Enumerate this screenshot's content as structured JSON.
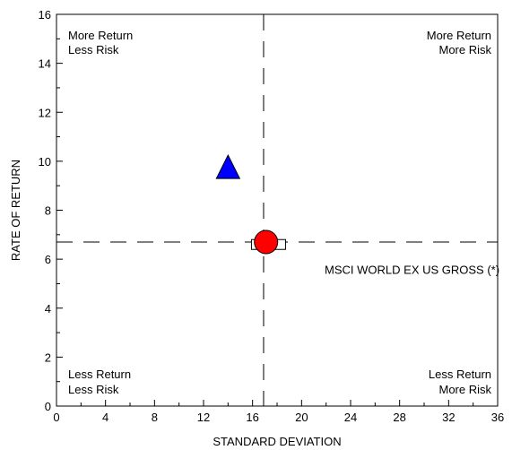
{
  "chart_data": {
    "type": "scatter",
    "xlabel": "STANDARD DEVIATION",
    "ylabel": "RATE OF RETURN",
    "xlim": [
      0,
      36
    ],
    "ylim": [
      0,
      16
    ],
    "x_ticks": [
      "0",
      "4",
      "8",
      "12",
      "16",
      "20",
      "24",
      "28",
      "32",
      "36"
    ],
    "y_ticks": [
      "0",
      "2",
      "4",
      "6",
      "8",
      "10",
      "12",
      "14",
      "16"
    ],
    "grid": false,
    "reference_lines": {
      "x": 16.9,
      "y": 6.7
    },
    "quadrant_labels": {
      "top_left": [
        "More Return",
        "Less Risk"
      ],
      "top_right": [
        "More Return",
        "More Risk"
      ],
      "bottom_left": [
        "Less Return",
        "Less Risk"
      ],
      "bottom_right": [
        "Less Return",
        "More Risk"
      ]
    },
    "points": [
      {
        "marker": "triangle",
        "color": "#0000ff",
        "x": 14.0,
        "y": 9.7
      },
      {
        "marker": "circle",
        "color": "#ff0000",
        "x": 17.1,
        "y": 6.7
      },
      {
        "marker": "square",
        "color": "#ffffff",
        "x": 17.3,
        "y": 6.6
      }
    ],
    "annotations": [
      {
        "text": "MSCI WORLD EX US GROSS (*)",
        "x": 35.2,
        "y": 5.4
      }
    ]
  }
}
